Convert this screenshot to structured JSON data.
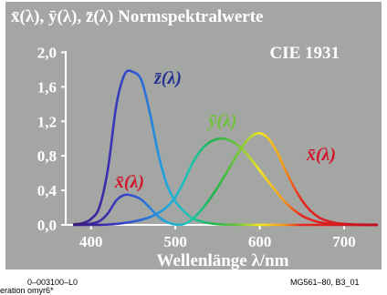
{
  "chart_data": {
    "type": "line",
    "title": "x̄(λ), ȳ(λ), z̄(λ) Normspektralwerte",
    "subtitle": "CIE 1931",
    "xlabel": "Wellenlänge λ/nm",
    "ylabel": "",
    "x_ticks": [
      400,
      500,
      600,
      700
    ],
    "y_ticks": [
      "0,0",
      "0,4",
      "0,8",
      "1,2",
      "1,6",
      "2,0"
    ],
    "y_tick_values": [
      0,
      0.4,
      0.8,
      1.2,
      1.6,
      2.0
    ],
    "xlim": [
      370,
      740
    ],
    "ylim": [
      0,
      2.1
    ],
    "grid": false,
    "colors": {
      "background": "#a4a6a4",
      "title_bar": "#a4a6a4",
      "text": "#ffffff"
    },
    "x": [
      380,
      390,
      400,
      410,
      420,
      430,
      440,
      450,
      460,
      470,
      480,
      490,
      500,
      510,
      520,
      530,
      540,
      550,
      560,
      570,
      580,
      590,
      600,
      610,
      620,
      630,
      640,
      650,
      660,
      670,
      680,
      690,
      700,
      710,
      720,
      730,
      740
    ],
    "series": [
      {
        "name": "x̄(λ)",
        "label_color": "#d1162a",
        "values": [
          0.0014,
          0.0042,
          0.0143,
          0.0435,
          0.1344,
          0.2839,
          0.3483,
          0.3362,
          0.2908,
          0.1954,
          0.0956,
          0.032,
          0.0049,
          0.0093,
          0.0633,
          0.1655,
          0.2904,
          0.4334,
          0.5945,
          0.7621,
          0.9163,
          1.0263,
          1.0622,
          1.0026,
          0.8544,
          0.6424,
          0.4479,
          0.2835,
          0.1649,
          0.0874,
          0.0468,
          0.0227,
          0.0114,
          0.0058,
          0.0029,
          0.0014,
          0.0007
        ]
      },
      {
        "name": "ȳ(λ)",
        "label_color": "#6fc23a",
        "values": [
          0.0,
          0.0001,
          0.0004,
          0.0012,
          0.004,
          0.0116,
          0.023,
          0.038,
          0.06,
          0.091,
          0.139,
          0.208,
          0.323,
          0.503,
          0.71,
          0.862,
          0.954,
          0.995,
          0.995,
          0.952,
          0.87,
          0.757,
          0.631,
          0.503,
          0.381,
          0.265,
          0.175,
          0.107,
          0.061,
          0.032,
          0.017,
          0.0082,
          0.0041,
          0.0021,
          0.001,
          0.0005,
          0.0002
        ]
      },
      {
        "name": "z̄(λ)",
        "label_color": "#25308f",
        "values": [
          0.0065,
          0.0201,
          0.0679,
          0.2074,
          0.6456,
          1.3856,
          1.7471,
          1.7721,
          1.6692,
          1.2876,
          0.813,
          0.4652,
          0.272,
          0.1582,
          0.0782,
          0.0422,
          0.0203,
          0.0087,
          0.0039,
          0.0021,
          0.0017,
          0.0011,
          0.0008,
          0.0003,
          0.0002,
          0.0,
          0.0,
          0.0,
          0.0,
          0.0,
          0.0,
          0.0,
          0.0,
          0.0,
          0.0,
          0.0,
          0.0
        ]
      }
    ]
  },
  "footer": {
    "left": "0–003100–L0",
    "right": "MG561–80, B3_01",
    "clipped": "eration omyr6*"
  }
}
